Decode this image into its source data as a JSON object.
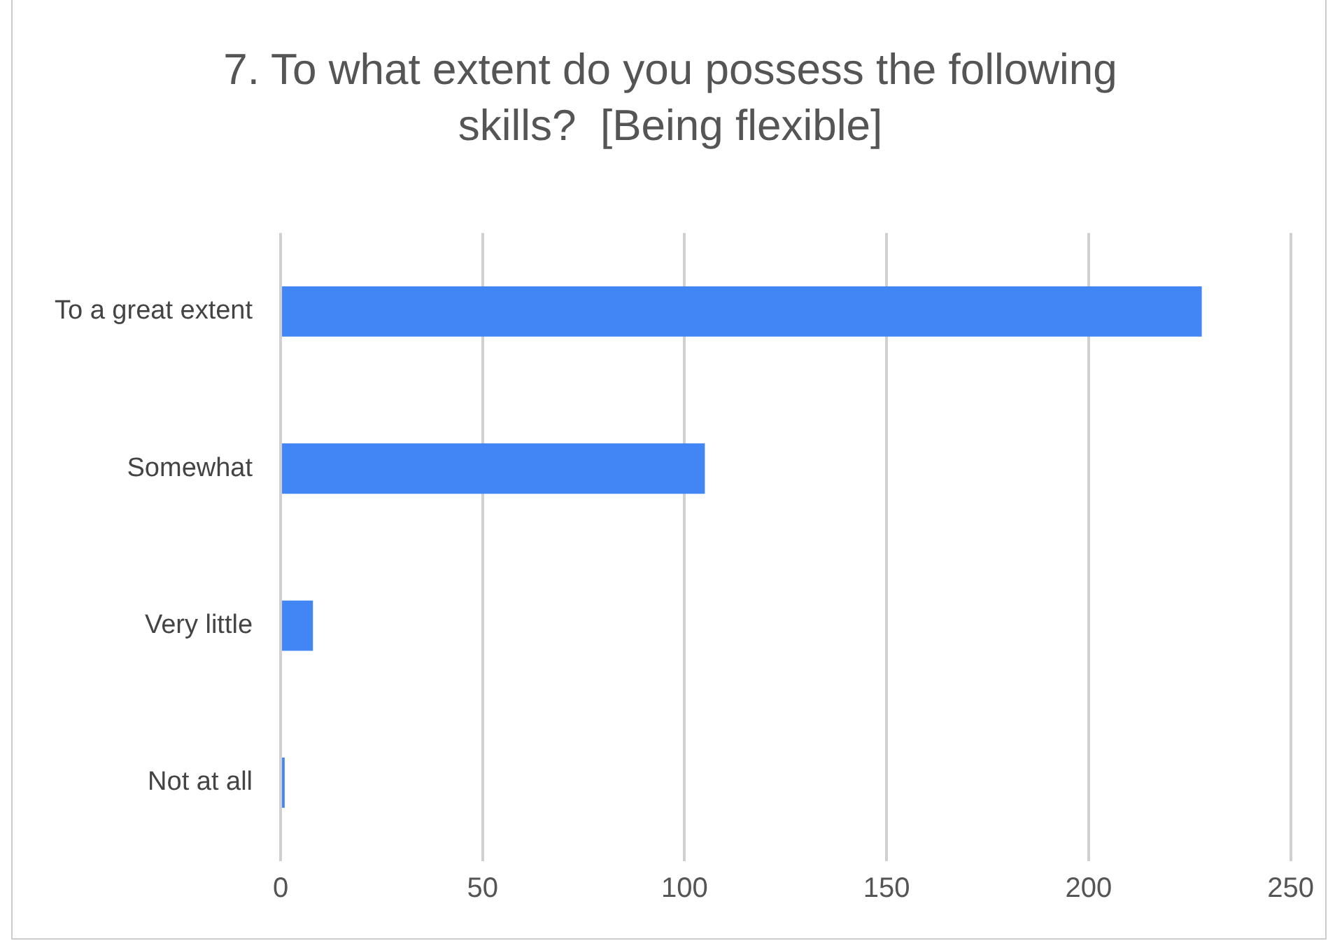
{
  "chart_data": {
    "type": "bar",
    "orientation": "horizontal",
    "title": "7. To what extent do you possess the following skills?  [Being flexible]",
    "categories": [
      "To a great extent",
      "Somewhat",
      "Very little",
      "Not at all"
    ],
    "values": [
      228,
      105,
      8,
      1
    ],
    "color": "#4285f4",
    "xlim": [
      0,
      250
    ],
    "xticks": [
      0,
      50,
      100,
      150,
      200,
      250
    ],
    "grid": "x",
    "legend": false
  }
}
